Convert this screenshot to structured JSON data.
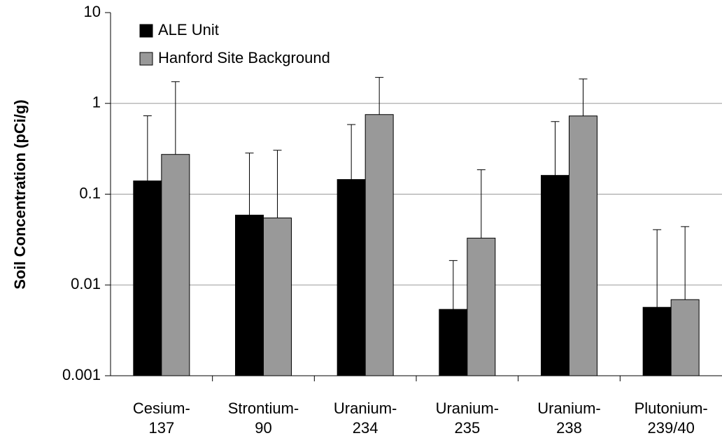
{
  "chart_data": {
    "type": "bar",
    "y_label": "Soil Concentration (pCi/g)",
    "log_scale": true,
    "grid": true,
    "legend_position": "top-left",
    "categories": [
      [
        "Cesium-",
        "137"
      ],
      [
        "Strontium-",
        "90"
      ],
      [
        "Uranium-",
        "234"
      ],
      [
        "Uranium-",
        "235"
      ],
      [
        "Uranium-",
        "238"
      ],
      [
        "Plutonium-",
        "239/40"
      ]
    ],
    "series": [
      {
        "name": "ALE Unit",
        "color": "#000000",
        "values": [
          0.14,
          0.0588,
          0.145,
          0.00538,
          0.161,
          0.00567
        ],
        "errors": [
          0.59,
          0.225,
          0.44,
          0.0132,
          0.47,
          0.035
        ]
      },
      {
        "name": "Hanford Site Background",
        "color": "#999999",
        "values": [
          0.274,
          0.0547,
          0.753,
          0.0328,
          0.727,
          0.00689
        ],
        "errors": [
          1.46,
          0.25,
          1.18,
          0.153,
          1.13,
          0.037
        ]
      }
    ],
    "ylim": [
      0.001,
      10
    ],
    "yticks": [
      0.001,
      0.01,
      0.1,
      1,
      10
    ]
  }
}
